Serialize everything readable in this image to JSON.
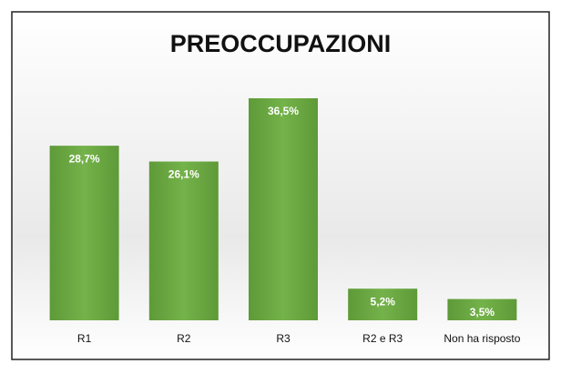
{
  "chart_data": {
    "type": "bar",
    "title": "PREOCCUPAZIONI",
    "categories": [
      "R1",
      "R2",
      "R3",
      "R2 e R3",
      "Non ha risposto"
    ],
    "values": [
      28.7,
      26.1,
      36.5,
      5.2,
      3.5
    ],
    "value_labels": [
      "28,7%",
      "26,1%",
      "36,5%",
      "5,2%",
      "3,5%"
    ],
    "color": "#6aa842"
  }
}
